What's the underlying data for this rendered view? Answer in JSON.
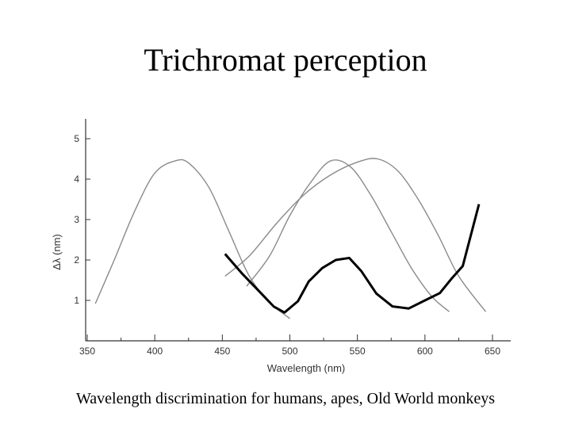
{
  "slide": {
    "title": "Trichromat perception",
    "caption": "Wavelength discrimination for humans, apes, Old World monkeys"
  },
  "chart_data": {
    "type": "line",
    "title": "",
    "xlabel": "Wavelength (nm)",
    "ylabel": "Δλ (nm)",
    "xlim": [
      350,
      655
    ],
    "ylim": [
      0,
      5.3
    ],
    "xticks": [
      350,
      400,
      450,
      500,
      550,
      600,
      650
    ],
    "yticks": [
      1,
      2,
      3,
      4,
      5
    ],
    "grid": false,
    "colors": {
      "sensitivity": "#8a8a8a",
      "discrimination": "#000000"
    },
    "sensitivity_curves": [
      {
        "x": [
          356,
          370,
          385,
          400,
          415,
          425,
          440,
          455,
          470,
          485,
          500
        ],
        "y": [
          0.92,
          2.0,
          3.2,
          4.15,
          4.45,
          4.4,
          3.8,
          2.7,
          1.6,
          0.95,
          0.55
        ]
      },
      {
        "x": [
          468,
          485,
          500,
          515,
          530,
          545,
          560,
          575,
          590,
          605,
          618
        ],
        "y": [
          1.35,
          2.1,
          3.1,
          3.9,
          4.45,
          4.3,
          3.6,
          2.7,
          1.8,
          1.1,
          0.72
        ]
      },
      {
        "x": [
          452,
          470,
          490,
          510,
          530,
          550,
          565,
          580,
          595,
          610,
          625,
          645
        ],
        "y": [
          1.6,
          2.1,
          2.9,
          3.6,
          4.1,
          4.42,
          4.5,
          4.2,
          3.5,
          2.6,
          1.6,
          0.72
        ]
      }
    ],
    "series": [
      {
        "x": [
          452,
          465,
          478,
          488,
          496,
          506,
          514,
          524,
          534,
          544,
          553,
          564,
          576,
          588,
          600,
          611,
          620,
          628,
          640
        ],
        "y": [
          2.15,
          1.65,
          1.2,
          0.85,
          0.7,
          0.98,
          1.47,
          1.8,
          2.0,
          2.05,
          1.72,
          1.17,
          0.85,
          0.8,
          1.0,
          1.18,
          1.55,
          1.85,
          3.38
        ]
      }
    ]
  }
}
